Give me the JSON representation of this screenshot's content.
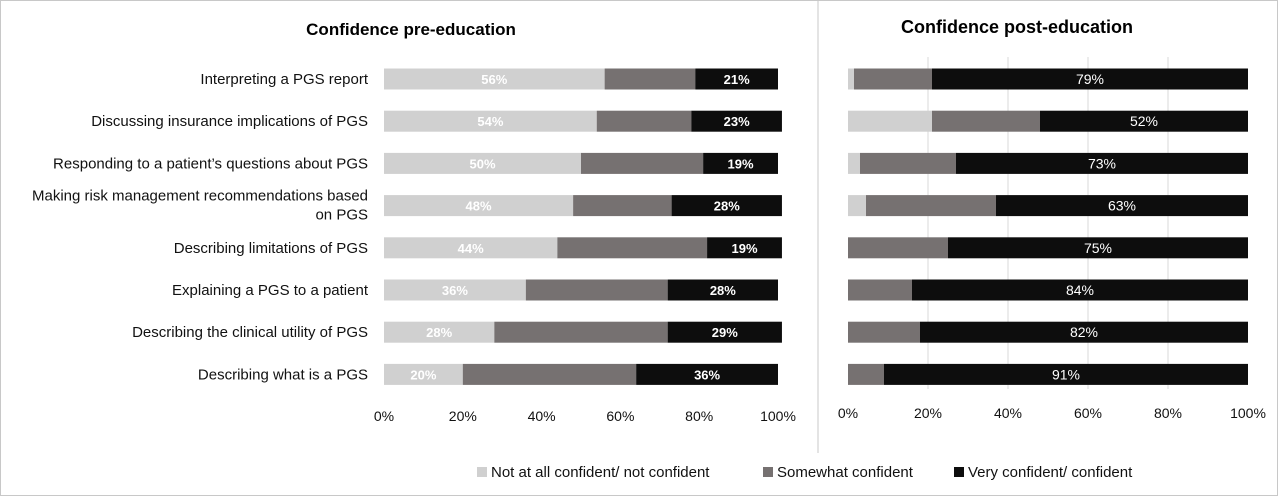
{
  "chart_data": [
    {
      "type": "bar",
      "stacked": true,
      "orientation": "horizontal",
      "title": "Confidence pre-education",
      "categories": [
        "Interpreting a PGS report",
        "Discussing insurance implications of PGS",
        "Responding to a patient’s questions about PGS",
        "Making risk management recommendations based on PGS",
        "Describing limitations of PGS",
        "Explaining a PGS to a patient",
        "Describing the clinical utility of PGS",
        "Describing what is a PGS"
      ],
      "category_lines": [
        [
          "Interpreting a PGS report"
        ],
        [
          "Discussing insurance implications of PGS"
        ],
        [
          "Responding to a patient’s questions about PGS"
        ],
        [
          "Making risk management recommendations based",
          "on PGS"
        ],
        [
          "Describing limitations of PGS"
        ],
        [
          "Explaining a PGS to a patient"
        ],
        [
          "Describing the clinical utility of PGS"
        ],
        [
          "Describing what is a PGS"
        ]
      ],
      "series": [
        {
          "name": "Not at all confident/ not confident",
          "values": [
            56,
            54,
            50,
            48,
            44,
            36,
            28,
            20
          ],
          "labels": [
            "56%",
            "54%",
            "50%",
            "48%",
            "44%",
            "36%",
            "28%",
            "20%"
          ]
        },
        {
          "name": "Somewhat confident",
          "values": [
            23,
            24,
            31,
            25,
            38,
            36,
            44,
            44
          ],
          "labels": []
        },
        {
          "name": "Very confident/ confident",
          "values": [
            21,
            23,
            19,
            28,
            19,
            28,
            29,
            36
          ],
          "labels": [
            "21%",
            "23%",
            "19%",
            "28%",
            "19%",
            "28%",
            "29%",
            "36%"
          ]
        }
      ],
      "xlim": [
        0,
        100
      ],
      "xticks": [
        "0%",
        "20%",
        "40%",
        "60%",
        "80%",
        "100%"
      ],
      "grid": false
    },
    {
      "type": "bar",
      "stacked": true,
      "orientation": "horizontal",
      "title": "Confidence post-education",
      "series": [
        {
          "name": "Not at all confident/ not confident",
          "values": [
            1.5,
            21,
            3,
            4.5,
            0,
            0,
            0,
            0
          ],
          "labels": []
        },
        {
          "name": "Somewhat confident",
          "values": [
            19.5,
            27,
            24,
            32.5,
            25,
            16,
            18,
            9
          ],
          "labels": []
        },
        {
          "name": "Very confident/ confident",
          "values": [
            79,
            52,
            73,
            63,
            75,
            84,
            82,
            91
          ],
          "labels": [
            "79%",
            "52%",
            "73%",
            "63%",
            "75%",
            "84%",
            "82%",
            "91%"
          ]
        }
      ],
      "xlim": [
        0,
        100
      ],
      "xticks": [
        "0%",
        "20%",
        "40%",
        "60%",
        "80%",
        "100%"
      ],
      "grid": true
    }
  ],
  "legend": {
    "placement": "bottom-center",
    "items": [
      {
        "label": "Not at all confident/ not confident",
        "color": "#d0d0d0"
      },
      {
        "label": "Somewhat confident",
        "color": "#767171"
      },
      {
        "label": "Very confident/ confident",
        "color": "#0d0d0d"
      }
    ]
  },
  "colors": {
    "not_confident": "#d0d0d0",
    "somewhat": "#767171",
    "confident": "#0d0d0d",
    "grid": "#d9d9d9",
    "divider": "#c8c8c8"
  }
}
